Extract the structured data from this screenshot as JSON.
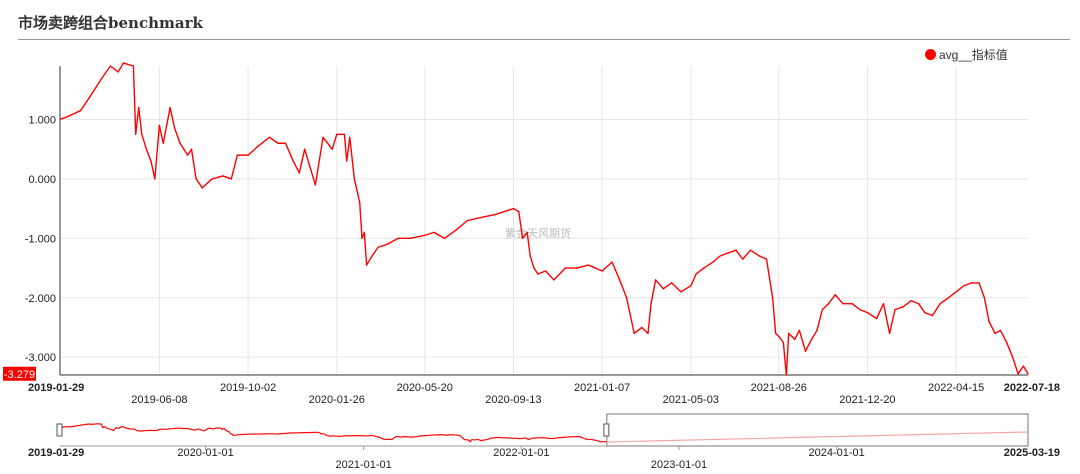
{
  "page": {
    "title": "市场卖跨组合benchmark"
  },
  "legend": {
    "label": "avg__指标值"
  },
  "watermark": "紫金天风期货",
  "colors": {
    "series": "#ff0000",
    "grid": "#e6e6e6",
    "axis": "#333333",
    "badge": "#ff0000"
  },
  "chart_data": {
    "type": "line",
    "title": "市场卖跨组合benchmark",
    "series": [
      {
        "name": "avg__指标值",
        "points": [
          [
            "2019-01-29",
            1.0
          ],
          [
            "2019-02-10",
            1.06
          ],
          [
            "2019-02-25",
            1.15
          ],
          [
            "2019-03-10",
            1.4
          ],
          [
            "2019-03-25",
            1.7
          ],
          [
            "2019-04-05",
            1.9
          ],
          [
            "2019-04-15",
            1.8
          ],
          [
            "2019-04-22",
            1.95
          ],
          [
            "2019-05-05",
            1.9
          ],
          [
            "2019-05-08",
            0.75
          ],
          [
            "2019-05-12",
            1.2
          ],
          [
            "2019-05-16",
            0.75
          ],
          [
            "2019-05-22",
            0.5
          ],
          [
            "2019-05-28",
            0.3
          ],
          [
            "2019-06-02",
            0.0
          ],
          [
            "2019-06-08",
            0.9
          ],
          [
            "2019-06-13",
            0.6
          ],
          [
            "2019-06-22",
            1.2
          ],
          [
            "2019-06-28",
            0.85
          ],
          [
            "2019-07-05",
            0.6
          ],
          [
            "2019-07-15",
            0.4
          ],
          [
            "2019-07-20",
            0.5
          ],
          [
            "2019-07-26",
            0.0
          ],
          [
            "2019-08-03",
            -0.15
          ],
          [
            "2019-08-16",
            0.0
          ],
          [
            "2019-08-30",
            0.05
          ],
          [
            "2019-09-10",
            0.0
          ],
          [
            "2019-09-18",
            0.4
          ],
          [
            "2019-10-02",
            0.4
          ],
          [
            "2019-10-15",
            0.55
          ],
          [
            "2019-10-30",
            0.7
          ],
          [
            "2019-11-10",
            0.6
          ],
          [
            "2019-11-20",
            0.6
          ],
          [
            "2019-11-30",
            0.3
          ],
          [
            "2019-12-08",
            0.1
          ],
          [
            "2019-12-15",
            0.5
          ],
          [
            "2019-12-22",
            0.2
          ],
          [
            "2019-12-29",
            -0.1
          ],
          [
            "2020-01-08",
            0.7
          ],
          [
            "2020-01-20",
            0.5
          ],
          [
            "2020-01-26",
            0.75
          ],
          [
            "2020-02-05",
            0.75
          ],
          [
            "2020-02-08",
            0.3
          ],
          [
            "2020-02-12",
            0.7
          ],
          [
            "2020-02-18",
            0.0
          ],
          [
            "2020-02-25",
            -0.4
          ],
          [
            "2020-02-28",
            -1.0
          ],
          [
            "2020-03-02",
            -0.9
          ],
          [
            "2020-03-05",
            -1.45
          ],
          [
            "2020-03-12",
            -1.3
          ],
          [
            "2020-03-20",
            -1.15
          ],
          [
            "2020-04-01",
            -1.1
          ],
          [
            "2020-04-15",
            -1.0
          ],
          [
            "2020-05-01",
            -1.0
          ],
          [
            "2020-05-20",
            -0.95
          ],
          [
            "2020-06-01",
            -0.9
          ],
          [
            "2020-06-15",
            -1.0
          ],
          [
            "2020-07-01",
            -0.85
          ],
          [
            "2020-07-15",
            -0.7
          ],
          [
            "2020-08-01",
            -0.65
          ],
          [
            "2020-08-20",
            -0.6
          ],
          [
            "2020-09-13",
            -0.5
          ],
          [
            "2020-09-20",
            -0.55
          ],
          [
            "2020-09-25",
            -1.0
          ],
          [
            "2020-10-01",
            -0.9
          ],
          [
            "2020-10-05",
            -1.3
          ],
          [
            "2020-10-10",
            -1.5
          ],
          [
            "2020-10-15",
            -1.6
          ],
          [
            "2020-10-25",
            -1.55
          ],
          [
            "2020-11-05",
            -1.7
          ],
          [
            "2020-11-20",
            -1.5
          ],
          [
            "2020-12-05",
            -1.5
          ],
          [
            "2020-12-20",
            -1.45
          ],
          [
            "2021-01-07",
            -1.55
          ],
          [
            "2021-01-20",
            -1.4
          ],
          [
            "2021-01-30",
            -1.7
          ],
          [
            "2021-02-08",
            -2.0
          ],
          [
            "2021-02-18",
            -2.6
          ],
          [
            "2021-02-28",
            -2.5
          ],
          [
            "2021-03-08",
            -2.6
          ],
          [
            "2021-03-12",
            -2.1
          ],
          [
            "2021-03-18",
            -1.7
          ],
          [
            "2021-03-28",
            -1.85
          ],
          [
            "2021-04-08",
            -1.75
          ],
          [
            "2021-04-20",
            -1.9
          ],
          [
            "2021-05-03",
            -1.8
          ],
          [
            "2021-05-10",
            -1.6
          ],
          [
            "2021-05-20",
            -1.5
          ],
          [
            "2021-06-01",
            -1.4
          ],
          [
            "2021-06-10",
            -1.3
          ],
          [
            "2021-06-20",
            -1.25
          ],
          [
            "2021-07-01",
            -1.2
          ],
          [
            "2021-07-10",
            -1.35
          ],
          [
            "2021-07-20",
            -1.2
          ],
          [
            "2021-08-01",
            -1.3
          ],
          [
            "2021-08-10",
            -1.35
          ],
          [
            "2021-08-18",
            -2.0
          ],
          [
            "2021-08-22",
            -2.6
          ],
          [
            "2021-08-26",
            -2.65
          ],
          [
            "2021-09-01",
            -2.75
          ],
          [
            "2021-09-05",
            -3.3
          ],
          [
            "2021-09-08",
            -2.6
          ],
          [
            "2021-09-16",
            -2.7
          ],
          [
            "2021-09-22",
            -2.55
          ],
          [
            "2021-09-30",
            -2.9
          ],
          [
            "2021-10-08",
            -2.7
          ],
          [
            "2021-10-15",
            -2.55
          ],
          [
            "2021-10-22",
            -2.2
          ],
          [
            "2021-10-30",
            -2.1
          ],
          [
            "2021-11-08",
            -1.95
          ],
          [
            "2021-11-18",
            -2.1
          ],
          [
            "2021-11-30",
            -2.1
          ],
          [
            "2021-12-10",
            -2.2
          ],
          [
            "2021-12-20",
            -2.25
          ],
          [
            "2022-01-01",
            -2.35
          ],
          [
            "2022-01-10",
            -2.1
          ],
          [
            "2022-01-18",
            -2.6
          ],
          [
            "2022-01-25",
            -2.2
          ],
          [
            "2022-02-05",
            -2.15
          ],
          [
            "2022-02-15",
            -2.05
          ],
          [
            "2022-02-25",
            -2.1
          ],
          [
            "2022-03-05",
            -2.25
          ],
          [
            "2022-03-15",
            -2.3
          ],
          [
            "2022-03-25",
            -2.1
          ],
          [
            "2022-04-05",
            -2.0
          ],
          [
            "2022-04-15",
            -1.9
          ],
          [
            "2022-04-25",
            -1.8
          ],
          [
            "2022-05-05",
            -1.75
          ],
          [
            "2022-05-15",
            -1.75
          ],
          [
            "2022-05-22",
            -2.0
          ],
          [
            "2022-05-28",
            -2.4
          ],
          [
            "2022-06-05",
            -2.6
          ],
          [
            "2022-06-12",
            -2.55
          ],
          [
            "2022-06-20",
            -2.75
          ],
          [
            "2022-06-28",
            -3.0
          ],
          [
            "2022-07-05",
            -3.28
          ],
          [
            "2022-07-12",
            -3.15
          ],
          [
            "2022-07-18",
            -3.279
          ]
        ]
      }
    ],
    "ylim": [
      -3.3,
      1.9
    ],
    "yticks": [
      "1.000",
      "0.000",
      "-1.000",
      "-2.000",
      "-3.000"
    ],
    "xticks_row1": [
      "2019-01-29",
      "2019-10-02",
      "2020-05-20",
      "2021-01-07",
      "2021-08-26",
      "2022-04-15",
      "2022-07-18"
    ],
    "xticks_row2": [
      "2019-06-08",
      "2020-01-26",
      "2020-09-13",
      "2021-05-03",
      "2021-12-20"
    ],
    "x_start": "2019-01-29",
    "x_end": "2022-07-18",
    "last_value_label": "-3.279",
    "grid": true,
    "legend_position": "top-right",
    "overview": {
      "start": "2019-01-29",
      "end": "2025-03-19",
      "selection": [
        "2019-01-29",
        "2022-07-18"
      ],
      "ticks_row1": [
        "2019-01-29",
        "2020-01-01",
        "2022-01-01",
        "2024-01-01",
        "2025-03-19"
      ],
      "ticks_row2": [
        "2021-01-01",
        "2023-01-01"
      ]
    }
  }
}
